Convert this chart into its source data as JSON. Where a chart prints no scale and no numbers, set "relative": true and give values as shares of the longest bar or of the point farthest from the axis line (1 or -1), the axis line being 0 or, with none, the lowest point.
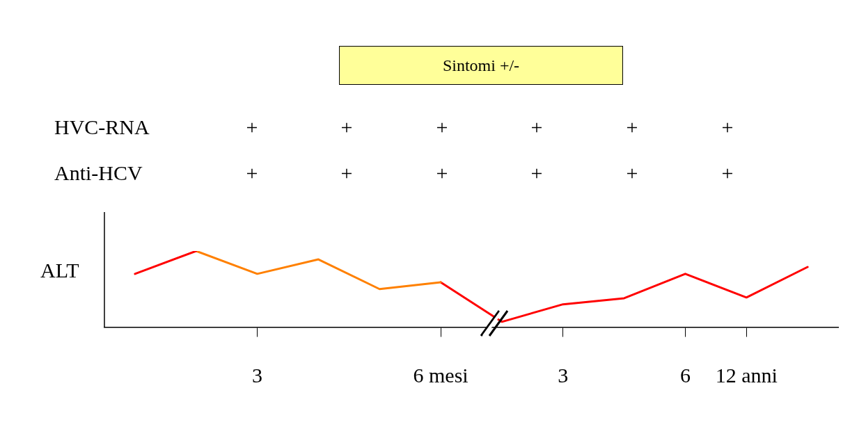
{
  "chart_data": {
    "type": "line",
    "relative": true,
    "ylabel": "ALT",
    "categories": [
      null,
      null,
      "3",
      null,
      null,
      "6 mesi",
      null,
      "3",
      null,
      "6",
      "12 anni",
      null
    ],
    "series": [
      {
        "color": "#ff0000",
        "values": [
          0.7,
          1.0,
          null,
          null,
          null,
          null,
          null,
          null,
          null,
          null,
          null,
          null
        ]
      },
      {
        "color": "#ff8000",
        "values": [
          null,
          1.0,
          0.7,
          0.89,
          0.5,
          0.59,
          null,
          null,
          null,
          null,
          null,
          null
        ]
      },
      {
        "color": "#ff0000",
        "values": [
          null,
          null,
          null,
          null,
          null,
          0.59,
          0.07,
          0.3,
          0.38,
          0.7,
          0.39,
          0.79
        ]
      }
    ],
    "annotations": [
      "Sintomi +/-",
      "HVC-RNA",
      "+",
      "+",
      "+",
      "+",
      "+",
      "+",
      "Anti-HCV",
      "+",
      "+",
      "+",
      "+",
      "+",
      "+"
    ],
    "grid": false,
    "legend": false,
    "marker": "none",
    "line_style": "solid"
  }
}
